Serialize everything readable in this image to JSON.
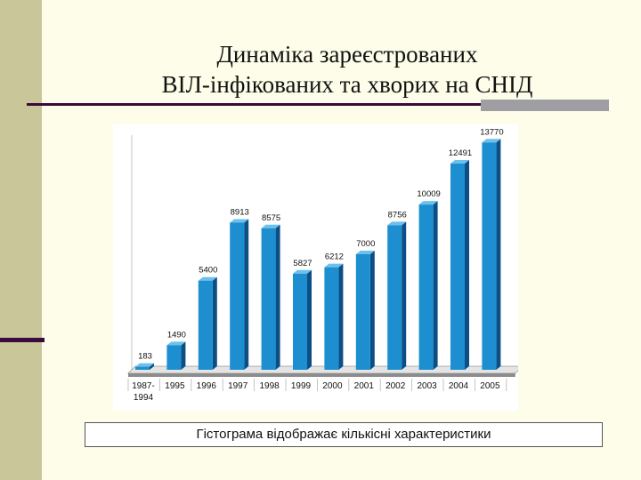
{
  "title": {
    "line1": "Динаміка зареєстрованих",
    "line2": "ВІЛ-інфікованих та хворих на СНІД"
  },
  "caption": "Гістограма відображає кількісні характеристики",
  "colors": {
    "bar_front": "#1d8fd0",
    "bar_side": "#0b4f86",
    "bar_top": "#6cc0ec",
    "accent": "#3a0a3c"
  },
  "chart_data": {
    "type": "bar",
    "categories": [
      "1987-\n1994",
      "1995",
      "1996",
      "1997",
      "1998",
      "1999",
      "2000",
      "2001",
      "2002",
      "2003",
      "2004",
      "2005"
    ],
    "values": [
      183,
      1490,
      5400,
      8913,
      8575,
      5827,
      6212,
      7000,
      8756,
      10009,
      12491,
      13770
    ],
    "data_labels": [
      "183",
      "1490",
      "5400",
      "8913",
      "8575",
      "5827",
      "6212",
      "7000",
      "8756",
      "10009",
      "12491",
      "13770"
    ],
    "ylim": [
      0,
      14000
    ],
    "grid": false,
    "legend": "none",
    "title": "",
    "xlabel": "",
    "ylabel": ""
  }
}
